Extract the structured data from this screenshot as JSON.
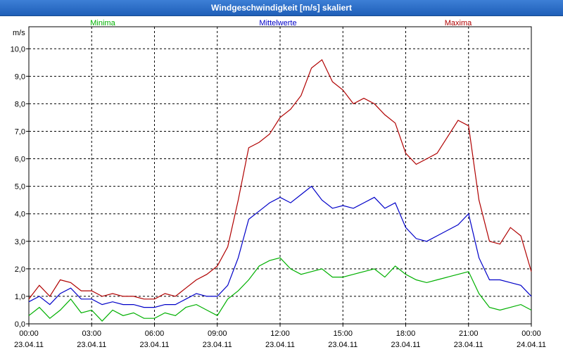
{
  "window": {
    "title": "Windgeschwindigkeit [m/s] skaliert"
  },
  "colors": {
    "min": "#00b000",
    "mean": "#0000c8",
    "max": "#b00000",
    "grid": "#000000"
  },
  "chart_data": {
    "type": "line",
    "title": "Windgeschwindigkeit [m/s] skaliert",
    "unit_label": "m/s",
    "xlabel": "",
    "ylabel": "m/s",
    "ylim": [
      0,
      10.8
    ],
    "xlim_hours": [
      0,
      24
    ],
    "grid": true,
    "legend_placement": "top",
    "yticks": [
      "0,0",
      "1,0",
      "2,0",
      "3,0",
      "4,0",
      "5,0",
      "6,0",
      "7,0",
      "8,0",
      "9,0",
      "10,0"
    ],
    "xticks": [
      {
        "time": "00:00",
        "date": "23.04.11"
      },
      {
        "time": "03:00",
        "date": "23.04.11"
      },
      {
        "time": "06:00",
        "date": "23.04.11"
      },
      {
        "time": "09:00",
        "date": "23.04.11"
      },
      {
        "time": "12:00",
        "date": "23.04.11"
      },
      {
        "time": "15:00",
        "date": "23.04.11"
      },
      {
        "time": "18:00",
        "date": "23.04.11"
      },
      {
        "time": "21:00",
        "date": "23.04.11"
      },
      {
        "time": "00:00",
        "date": "24.04.11"
      }
    ],
    "series": [
      {
        "name": "Minima",
        "x": [
          "00:00",
          "00:30",
          "01:00",
          "01:30",
          "02:00",
          "02:30",
          "03:00",
          "03:30",
          "04:00",
          "04:30",
          "05:00",
          "05:30",
          "06:00",
          "06:30",
          "07:00",
          "07:30",
          "08:00",
          "08:30",
          "09:00",
          "09:30",
          "10:00",
          "10:30",
          "11:00",
          "11:30",
          "12:00",
          "12:30",
          "13:00",
          "13:30",
          "14:00",
          "14:30",
          "15:00",
          "15:30",
          "16:00",
          "16:30",
          "17:00",
          "17:30",
          "18:00",
          "18:30",
          "19:00",
          "19:30",
          "20:00",
          "20:30",
          "21:00",
          "21:30",
          "22:00",
          "22:30",
          "23:00",
          "23:30",
          "24:00"
        ],
        "values": [
          0.3,
          0.6,
          0.2,
          0.5,
          0.9,
          0.4,
          0.5,
          0.1,
          0.5,
          0.3,
          0.4,
          0.2,
          0.2,
          0.4,
          0.3,
          0.6,
          0.7,
          0.5,
          0.3,
          0.9,
          1.2,
          1.6,
          2.1,
          2.3,
          2.4,
          2.0,
          1.8,
          1.9,
          2.0,
          1.7,
          1.7,
          1.8,
          1.9,
          2.0,
          1.7,
          2.1,
          1.8,
          1.6,
          1.5,
          1.6,
          1.7,
          1.8,
          1.9,
          1.1,
          0.6,
          0.5,
          0.6,
          0.7,
          0.5
        ]
      },
      {
        "name": "Mittelwerte",
        "x": [
          "00:00",
          "00:30",
          "01:00",
          "01:30",
          "02:00",
          "02:30",
          "03:00",
          "03:30",
          "04:00",
          "04:30",
          "05:00",
          "05:30",
          "06:00",
          "06:30",
          "07:00",
          "07:30",
          "08:00",
          "08:30",
          "09:00",
          "09:30",
          "10:00",
          "10:30",
          "11:00",
          "11:30",
          "12:00",
          "12:30",
          "13:00",
          "13:30",
          "14:00",
          "14:30",
          "15:00",
          "15:30",
          "16:00",
          "16:30",
          "17:00",
          "17:30",
          "18:00",
          "18:30",
          "19:00",
          "19:30",
          "20:00",
          "20:30",
          "21:00",
          "21:30",
          "22:00",
          "22:30",
          "23:00",
          "23:30",
          "24:00"
        ],
        "values": [
          0.8,
          1.0,
          0.7,
          1.1,
          1.3,
          0.9,
          0.9,
          0.7,
          0.8,
          0.7,
          0.7,
          0.6,
          0.6,
          0.7,
          0.7,
          0.9,
          1.1,
          1.0,
          1.0,
          1.4,
          2.4,
          3.8,
          4.1,
          4.4,
          4.6,
          4.4,
          4.7,
          5.0,
          4.5,
          4.2,
          4.3,
          4.2,
          4.4,
          4.6,
          4.2,
          4.4,
          3.5,
          3.1,
          3.0,
          3.2,
          3.4,
          3.6,
          4.0,
          2.4,
          1.6,
          1.6,
          1.5,
          1.4,
          1.0
        ]
      },
      {
        "name": "Maxima",
        "x": [
          "00:00",
          "00:30",
          "01:00",
          "01:30",
          "02:00",
          "02:30",
          "03:00",
          "03:30",
          "04:00",
          "04:30",
          "05:00",
          "05:30",
          "06:00",
          "06:30",
          "07:00",
          "07:30",
          "08:00",
          "08:30",
          "09:00",
          "09:30",
          "10:00",
          "10:30",
          "11:00",
          "11:30",
          "12:00",
          "12:30",
          "13:00",
          "13:30",
          "14:00",
          "14:30",
          "15:00",
          "15:30",
          "16:00",
          "16:30",
          "17:00",
          "17:30",
          "18:00",
          "18:30",
          "19:00",
          "19:30",
          "20:00",
          "20:30",
          "21:00",
          "21:30",
          "22:00",
          "22:30",
          "23:00",
          "23:30",
          "24:00"
        ],
        "values": [
          0.9,
          1.4,
          1.0,
          1.6,
          1.5,
          1.2,
          1.2,
          1.0,
          1.1,
          1.0,
          1.0,
          0.9,
          0.9,
          1.1,
          1.0,
          1.3,
          1.6,
          1.8,
          2.1,
          2.8,
          4.5,
          6.4,
          6.6,
          6.9,
          7.5,
          7.8,
          8.3,
          9.3,
          9.6,
          8.8,
          8.5,
          8.0,
          8.2,
          8.0,
          7.6,
          7.3,
          6.2,
          5.8,
          6.0,
          6.2,
          6.8,
          7.4,
          7.2,
          4.5,
          3.0,
          2.9,
          3.5,
          3.2,
          1.9
        ]
      }
    ]
  }
}
